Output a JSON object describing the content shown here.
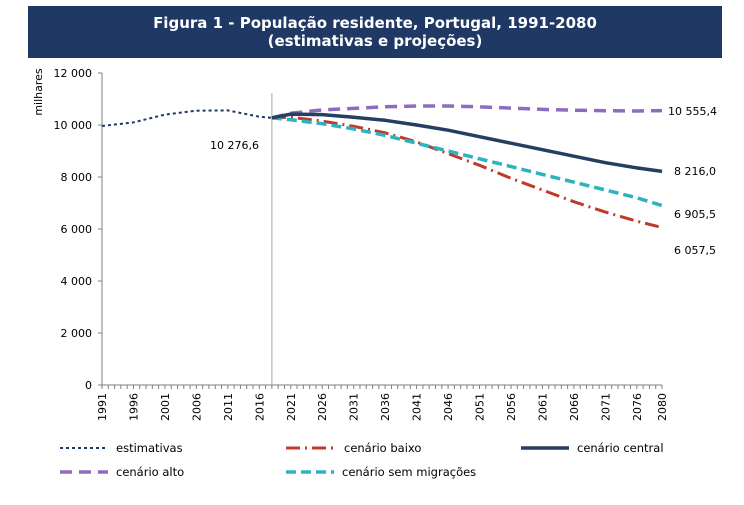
{
  "header": {
    "title_line1": "Figura 1 - População residente, Portugal, 1991-2080",
    "title_line2": "(estimativas e projeções)"
  },
  "colors": {
    "header_bg": "#1f3864",
    "estimativas": "#1f3864",
    "cenario_baixo": "#c0392b",
    "cenario_central": "#243f60",
    "cenario_alto": "#8e6bbf",
    "cenario_sem_migracoes": "#2bb3c0"
  },
  "chart_data": {
    "type": "line",
    "ylabel": "milhares",
    "xlabel": "",
    "ylim": [
      0,
      12000
    ],
    "xlim": [
      1991,
      2080
    ],
    "y_ticks": [
      "0",
      "2 000",
      "4 000",
      "6 000",
      "8 000",
      "10 000",
      "12 000"
    ],
    "x_ticks": [
      "1991",
      "1996",
      "2001",
      "2006",
      "2011",
      "2016",
      "2021",
      "2026",
      "2031",
      "2036",
      "2041",
      "2046",
      "2051",
      "2056",
      "2061",
      "2066",
      "2071",
      "2076",
      "2080"
    ],
    "annotations": [
      {
        "text": "10 276,6",
        "year": 2018
      },
      {
        "text": "10 555,4",
        "series": "cenário alto"
      },
      {
        "text": "8 216,0",
        "series": "cenário central"
      },
      {
        "text": "6 905,5",
        "series": "cenário sem migrações"
      },
      {
        "text": "6 057,5",
        "series": "cenário baixo"
      }
    ],
    "series": [
      {
        "name": "estimativas",
        "style": "dotted",
        "x": [
          1991,
          1996,
          2001,
          2006,
          2011,
          2016,
          2018
        ],
        "y": [
          9960,
          10100,
          10400,
          10550,
          10560,
          10320,
          10276.6
        ]
      },
      {
        "name": "cenário baixo",
        "style": "dashdot",
        "x": [
          2018,
          2021,
          2026,
          2031,
          2036,
          2041,
          2046,
          2051,
          2056,
          2061,
          2066,
          2071,
          2076,
          2080
        ],
        "y": [
          10276.6,
          10300,
          10150,
          9950,
          9700,
          9350,
          8900,
          8450,
          7950,
          7500,
          7050,
          6650,
          6300,
          6057.5
        ]
      },
      {
        "name": "cenário central",
        "style": "solid",
        "x": [
          2018,
          2021,
          2026,
          2031,
          2036,
          2041,
          2046,
          2051,
          2056,
          2061,
          2066,
          2071,
          2076,
          2080
        ],
        "y": [
          10276.6,
          10420,
          10400,
          10300,
          10180,
          10000,
          9800,
          9550,
          9300,
          9050,
          8800,
          8550,
          8350,
          8216.0
        ]
      },
      {
        "name": "cenário alto",
        "style": "dashed",
        "x": [
          2018,
          2021,
          2026,
          2031,
          2036,
          2041,
          2046,
          2051,
          2056,
          2061,
          2066,
          2071,
          2076,
          2080
        ],
        "y": [
          10276.6,
          10450,
          10580,
          10640,
          10700,
          10730,
          10730,
          10700,
          10650,
          10600,
          10570,
          10550,
          10540,
          10555.4
        ]
      },
      {
        "name": "cenário sem migrações",
        "style": "dashed",
        "x": [
          2018,
          2021,
          2026,
          2031,
          2036,
          2041,
          2046,
          2051,
          2056,
          2061,
          2066,
          2071,
          2076,
          2080
        ],
        "y": [
          10276.6,
          10200,
          10050,
          9850,
          9600,
          9300,
          9000,
          8700,
          8400,
          8100,
          7800,
          7500,
          7200,
          6905.5
        ]
      }
    ],
    "legend": {
      "placement": "bottom",
      "items": [
        "estimativas",
        "cenário baixo",
        "cenário central",
        "cenário alto",
        "cenário sem migrações"
      ]
    }
  }
}
